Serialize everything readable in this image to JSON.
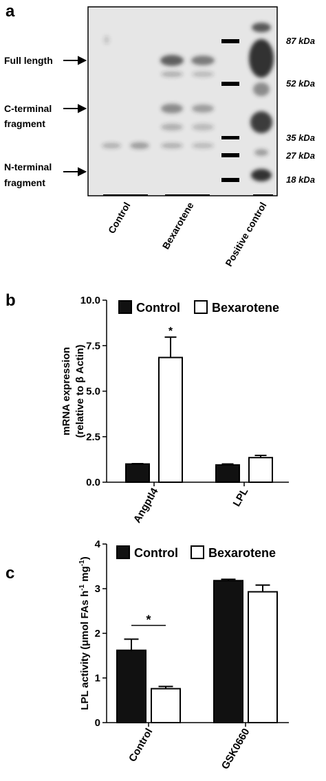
{
  "blot": {
    "label": "a",
    "band_labels": [
      [
        "Full length"
      ],
      [
        "C-terminal",
        "fragment"
      ],
      [
        "N-terminal",
        "fragment"
      ]
    ],
    "markers": [
      "87 kDa",
      "52 kDa",
      "35 kDa",
      "27 kDa",
      "18 kDa"
    ],
    "lanes": [
      "Control",
      "Bexarotene",
      "Positive control"
    ]
  },
  "chart_data": [
    {
      "type": "bar",
      "label": "b",
      "y_label": [
        "mRNA expression",
        "(relative to β Actin)"
      ],
      "categories": [
        "Angptl4",
        "LPL"
      ],
      "series": [
        {
          "name": "Control",
          "color": "#111111",
          "values": [
            1.0,
            0.95
          ],
          "errors": [
            0.02,
            0.05
          ]
        },
        {
          "name": "Bexarotene",
          "color": "#ffffff",
          "values": [
            6.85,
            1.35
          ],
          "errors": [
            1.12,
            0.12
          ]
        }
      ],
      "ylim": [
        0,
        10
      ],
      "yticks": [
        {
          "value": 0,
          "label": "0.0"
        },
        {
          "value": 2.5,
          "label": "2.5"
        },
        {
          "value": 5,
          "label": "5.0"
        },
        {
          "value": 7.5,
          "label": "7.5"
        },
        {
          "value": 10,
          "label": "10.0"
        }
      ],
      "legend": "top",
      "annotations": [
        "*"
      ]
    },
    {
      "type": "bar",
      "label": "c",
      "y_label": [
        "LPL activity (μmol FAs h",
        "-1",
        " mg",
        "-1",
        ")"
      ],
      "categories": [
        "Control",
        "GSK0660"
      ],
      "series": [
        {
          "name": "Control",
          "color": "#111111",
          "values": [
            1.62,
            3.18
          ],
          "errors": [
            0.25,
            0.03
          ]
        },
        {
          "name": "Bexarotene",
          "color": "#ffffff",
          "values": [
            0.76,
            2.93
          ],
          "errors": [
            0.05,
            0.15
          ]
        }
      ],
      "ylim": [
        0,
        4
      ],
      "yticks": [
        0,
        1,
        2,
        3,
        4
      ],
      "legend": "top",
      "annotations": [
        "*"
      ]
    }
  ]
}
